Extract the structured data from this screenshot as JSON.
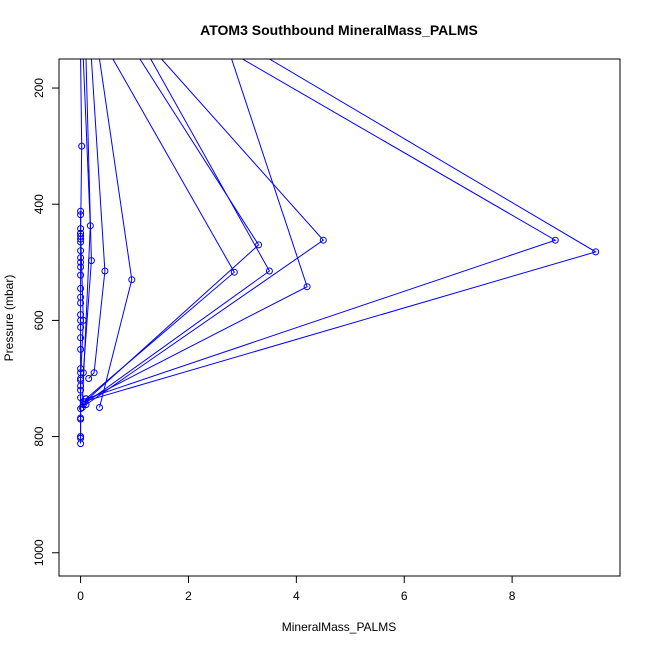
{
  "chart_data": {
    "type": "line",
    "title": "ATOM3 Southbound MineralMass_PALMS",
    "xlabel": "MineralMass_PALMS",
    "ylabel": "Pressure (mbar)",
    "xlim": [
      -0.4,
      10.0
    ],
    "ylim": [
      1040,
      150
    ],
    "y_inverted": true,
    "x_ticks": [
      0,
      2,
      4,
      6,
      8
    ],
    "x_tick_labels": [
      "0",
      "2",
      "4",
      "6",
      "8"
    ],
    "y_ticks": [
      200,
      400,
      600,
      800,
      1000
    ],
    "y_tick_labels": [
      "200",
      "400",
      "600",
      "800",
      "1000"
    ],
    "grid": false,
    "legend": "none",
    "line_color": "#0000ff",
    "marker": "open-circle",
    "series": [
      {
        "x": [
          0.0,
          0.02,
          0.0,
          0.05,
          0.0,
          0.0
        ],
        "y": [
          150,
          300,
          450,
          600,
          700,
          800
        ]
      },
      {
        "x": [
          0.6,
          2.85,
          0.1
        ],
        "y": [
          150,
          517,
          735
        ]
      },
      {
        "x": [
          1.1,
          3.3,
          0.08
        ],
        "y": [
          150,
          470,
          740
        ]
      },
      {
        "x": [
          1.3,
          3.5,
          0.05
        ],
        "y": [
          150,
          515,
          745
        ]
      },
      {
        "x": [
          1.5,
          4.5,
          0.1
        ],
        "y": [
          150,
          462,
          745
        ]
      },
      {
        "x": [
          0.2,
          0.45,
          0.25,
          0.15
        ],
        "y": [
          150,
          515,
          690,
          700
        ]
      },
      {
        "x": [
          0.35,
          0.95,
          0.35
        ],
        "y": [
          150,
          530,
          750
        ]
      },
      {
        "x": [
          0.1,
          0.2,
          0.05
        ],
        "y": [
          150,
          497,
          690
        ]
      },
      {
        "x": [
          0.05,
          0.18,
          0.03
        ],
        "y": [
          150,
          437,
          750
        ]
      },
      {
        "x": [
          2.8,
          4.2,
          0.05
        ],
        "y": [
          150,
          542,
          740
        ]
      },
      {
        "x": [
          3.0,
          8.8,
          0.1
        ],
        "y": [
          150,
          462,
          735
        ]
      },
      {
        "x": [
          3.5,
          9.55,
          0.05
        ],
        "y": [
          150,
          482,
          740
        ]
      },
      {
        "x": [
          0.0,
          0.0,
          0.0,
          0.0,
          0.0,
          0.0,
          0.0,
          0.0,
          0.0,
          0.0,
          0.0,
          0.0,
          0.0,
          0.0,
          0.0,
          0.0,
          0.0,
          0.0,
          0.0,
          0.0,
          0.0,
          0.0,
          0.0,
          0.0,
          0.0,
          0.0,
          0.0,
          0.0,
          0.0,
          0.0,
          0.0,
          0.0
        ],
        "y": [
          412,
          418,
          442,
          450,
          455,
          460,
          465,
          480,
          492,
          500,
          508,
          522,
          545,
          560,
          570,
          590,
          600,
          612,
          630,
          650,
          683,
          690,
          703,
          713,
          720,
          733,
          752,
          768,
          770,
          800,
          803,
          812
        ]
      }
    ]
  }
}
